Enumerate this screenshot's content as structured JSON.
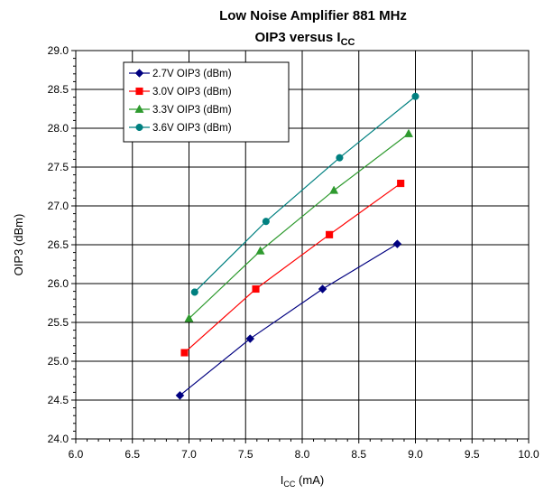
{
  "chart_data": {
    "type": "line",
    "title": {
      "line1": "Low Noise Amplifier 881 MHz",
      "line2_main": "OIP3 versus I",
      "line2_sub": "CC"
    },
    "xlabel": {
      "main": "I",
      "sub": "CC",
      "suffix": " (mA)"
    },
    "ylabel": "OIP3 (dBm)",
    "xlim": [
      6.0,
      10.0
    ],
    "ylim": [
      24.0,
      29.0
    ],
    "x_ticks": [
      "6.0",
      "6.5",
      "7.0",
      "7.5",
      "8.0",
      "8.5",
      "9.0",
      "9.5",
      "10.0"
    ],
    "y_ticks": [
      "24.0",
      "24.5",
      "25.0",
      "25.5",
      "26.0",
      "26.5",
      "27.0",
      "27.5",
      "28.0",
      "28.5",
      "29.0"
    ],
    "grid": true,
    "legend_position": "top-left",
    "series": [
      {
        "name": "2.7V OIP3 (dBm)",
        "color": "#000080",
        "marker": "diamond",
        "x": [
          6.92,
          7.54,
          8.18,
          8.84
        ],
        "y": [
          24.56,
          25.29,
          25.93,
          26.51
        ]
      },
      {
        "name": "3.0V OIP3 (dBm)",
        "color": "#ff0000",
        "marker": "square",
        "x": [
          6.96,
          7.59,
          8.24,
          8.87
        ],
        "y": [
          25.11,
          25.93,
          26.63,
          27.29
        ]
      },
      {
        "name": "3.3V OIP3 (dBm)",
        "color": "#2e9a2e",
        "marker": "triangle",
        "x": [
          7.0,
          7.63,
          8.28,
          8.94
        ],
        "y": [
          25.55,
          26.42,
          27.2,
          27.93
        ]
      },
      {
        "name": "3.6V OIP3 (dBm)",
        "color": "#008080",
        "marker": "circle",
        "x": [
          7.05,
          7.68,
          8.33,
          9.0
        ],
        "y": [
          25.89,
          26.8,
          27.62,
          28.41
        ]
      }
    ]
  }
}
